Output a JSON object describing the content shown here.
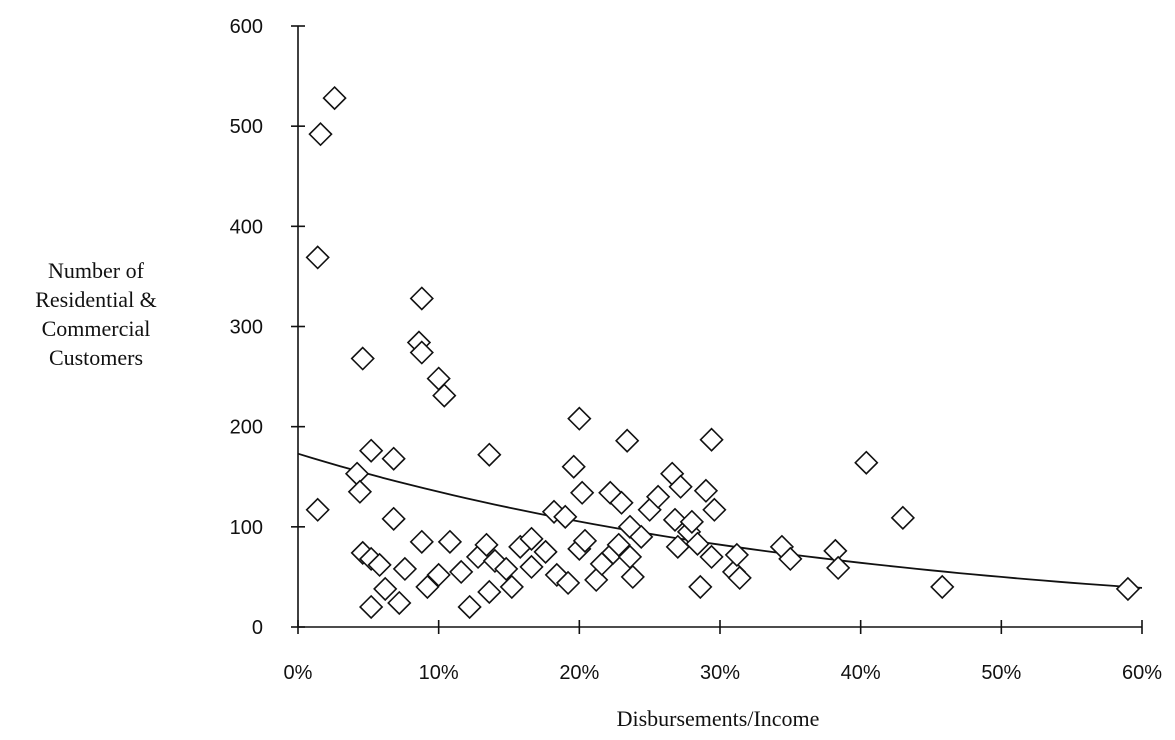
{
  "chart_data": {
    "type": "scatter",
    "title": "",
    "xlabel": "Disbursements/Income",
    "ylabel_lines": [
      "Number of",
      "Residential &",
      "Commercial",
      "Customers"
    ],
    "xlim": [
      0,
      0.6
    ],
    "ylim": [
      0,
      600
    ],
    "x_ticks": [
      0,
      0.1,
      0.2,
      0.3,
      0.4,
      0.5,
      0.6
    ],
    "x_tick_labels": [
      "0%",
      "10%",
      "20%",
      "30%",
      "40%",
      "50%",
      "60%"
    ],
    "y_ticks": [
      0,
      100,
      200,
      300,
      400,
      500,
      600
    ],
    "y_tick_labels": [
      "0",
      "100",
      "200",
      "300",
      "400",
      "500",
      "600"
    ],
    "grid": false,
    "legend": "none",
    "marker": "open-diamond",
    "points": [
      [
        0.016,
        492
      ],
      [
        0.026,
        528
      ],
      [
        0.014,
        369
      ],
      [
        0.014,
        117
      ],
      [
        0.046,
        268
      ],
      [
        0.052,
        176
      ],
      [
        0.042,
        153
      ],
      [
        0.044,
        135
      ],
      [
        0.046,
        74
      ],
      [
        0.052,
        68
      ],
      [
        0.058,
        62
      ],
      [
        0.062,
        38
      ],
      [
        0.052,
        20
      ],
      [
        0.068,
        168
      ],
      [
        0.068,
        108
      ],
      [
        0.072,
        24
      ],
      [
        0.076,
        58
      ],
      [
        0.088,
        328
      ],
      [
        0.086,
        284
      ],
      [
        0.088,
        274
      ],
      [
        0.1,
        248
      ],
      [
        0.104,
        231
      ],
      [
        0.088,
        85
      ],
      [
        0.092,
        40
      ],
      [
        0.1,
        52
      ],
      [
        0.108,
        85
      ],
      [
        0.116,
        55
      ],
      [
        0.122,
        20
      ],
      [
        0.128,
        70
      ],
      [
        0.134,
        82
      ],
      [
        0.136,
        35
      ],
      [
        0.14,
        66
      ],
      [
        0.136,
        172
      ],
      [
        0.148,
        58
      ],
      [
        0.152,
        40
      ],
      [
        0.158,
        80
      ],
      [
        0.166,
        88
      ],
      [
        0.166,
        60
      ],
      [
        0.176,
        75
      ],
      [
        0.182,
        115
      ],
      [
        0.184,
        52
      ],
      [
        0.19,
        110
      ],
      [
        0.192,
        44
      ],
      [
        0.196,
        160
      ],
      [
        0.2,
        208
      ],
      [
        0.202,
        134
      ],
      [
        0.2,
        78
      ],
      [
        0.204,
        86
      ],
      [
        0.212,
        47
      ],
      [
        0.216,
        63
      ],
      [
        0.222,
        134
      ],
      [
        0.224,
        74
      ],
      [
        0.228,
        82
      ],
      [
        0.23,
        124
      ],
      [
        0.234,
        186
      ],
      [
        0.236,
        100
      ],
      [
        0.236,
        70
      ],
      [
        0.238,
        50
      ],
      [
        0.244,
        90
      ],
      [
        0.25,
        117
      ],
      [
        0.256,
        130
      ],
      [
        0.266,
        153
      ],
      [
        0.268,
        107
      ],
      [
        0.27,
        80
      ],
      [
        0.272,
        140
      ],
      [
        0.278,
        95
      ],
      [
        0.28,
        105
      ],
      [
        0.284,
        83
      ],
      [
        0.286,
        40
      ],
      [
        0.29,
        136
      ],
      [
        0.294,
        187
      ],
      [
        0.294,
        70
      ],
      [
        0.296,
        117
      ],
      [
        0.31,
        55
      ],
      [
        0.312,
        72
      ],
      [
        0.314,
        49
      ],
      [
        0.344,
        80
      ],
      [
        0.35,
        68
      ],
      [
        0.382,
        76
      ],
      [
        0.384,
        59
      ],
      [
        0.404,
        164
      ],
      [
        0.43,
        109
      ],
      [
        0.458,
        40
      ],
      [
        0.59,
        38
      ]
    ],
    "trendline": {
      "type": "exponential",
      "x": [
        0,
        0.1,
        0.2,
        0.3,
        0.4,
        0.5,
        0.6
      ],
      "y": [
        173,
        135,
        105,
        82,
        64,
        50,
        39
      ]
    }
  }
}
